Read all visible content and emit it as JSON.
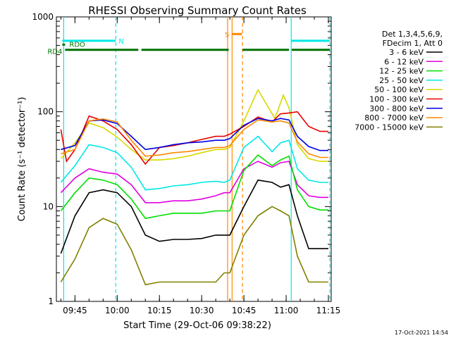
{
  "chart_data": {
    "type": "line",
    "title": "RHESSI Observing Summary Count Rates",
    "xlabel": "Start Time (29-Oct-06 09:38:22)",
    "ylabel": "Count Rate (s⁻¹ detector⁻¹)",
    "ylim": [
      1,
      1000
    ],
    "yscale": "log",
    "xlim_minutes": [
      38.4,
      136.0
    ],
    "x_ticks": [
      "09:45",
      "10:00",
      "10:15",
      "10:30",
      "10:45",
      "11:00",
      "11:15"
    ],
    "y_ticks": [
      "1",
      "10",
      "100",
      "1000"
    ],
    "legend_header": [
      "Det 1,3,4,5,6,9,",
      "FDecim 1, Att 0"
    ],
    "legend_placement": "right",
    "series": [
      {
        "name": "3 - 6 keV",
        "color": "#000000",
        "points": [
          [
            40,
            3.2
          ],
          [
            45,
            8
          ],
          [
            50,
            14
          ],
          [
            55,
            15
          ],
          [
            60,
            14
          ],
          [
            65,
            10
          ],
          [
            70,
            5
          ],
          [
            75,
            4.3
          ],
          [
            80,
            4.5
          ],
          [
            85,
            4.5
          ],
          [
            90,
            4.6
          ],
          [
            95,
            5
          ],
          [
            98,
            5
          ],
          [
            100,
            5
          ],
          [
            105,
            10
          ],
          [
            110,
            19
          ],
          [
            115,
            18
          ],
          [
            118,
            16
          ],
          [
            121,
            17
          ],
          [
            124,
            8
          ],
          [
            128,
            3.6
          ],
          [
            132,
            3.6
          ],
          [
            135,
            3.6
          ]
        ]
      },
      {
        "name": "6 - 12 keV",
        "color": "#e000e0",
        "points": [
          [
            40,
            14
          ],
          [
            45,
            20
          ],
          [
            50,
            25
          ],
          [
            55,
            23
          ],
          [
            60,
            22
          ],
          [
            65,
            17
          ],
          [
            70,
            11
          ],
          [
            75,
            11
          ],
          [
            80,
            11.5
          ],
          [
            85,
            11.5
          ],
          [
            90,
            12
          ],
          [
            95,
            13
          ],
          [
            98,
            14
          ],
          [
            100,
            14
          ],
          [
            105,
            25
          ],
          [
            110,
            30
          ],
          [
            115,
            26
          ],
          [
            118,
            29
          ],
          [
            121,
            30
          ],
          [
            124,
            17
          ],
          [
            128,
            13
          ],
          [
            132,
            12.5
          ],
          [
            135,
            12.5
          ]
        ]
      },
      {
        "name": "12 - 25 keV",
        "color": "#00e000",
        "points": [
          [
            40,
            9
          ],
          [
            45,
            14
          ],
          [
            50,
            20
          ],
          [
            55,
            19
          ],
          [
            60,
            17
          ],
          [
            65,
            12
          ],
          [
            70,
            7.5
          ],
          [
            75,
            8
          ],
          [
            80,
            8.5
          ],
          [
            85,
            8.5
          ],
          [
            90,
            8.5
          ],
          [
            95,
            9
          ],
          [
            98,
            9
          ],
          [
            100,
            9
          ],
          [
            105,
            24
          ],
          [
            110,
            35
          ],
          [
            115,
            27
          ],
          [
            118,
            31
          ],
          [
            121,
            34
          ],
          [
            124,
            15
          ],
          [
            128,
            10
          ],
          [
            132,
            9.2
          ],
          [
            135,
            9.2
          ]
        ]
      },
      {
        "name": "25 - 50 keV",
        "color": "#00e8e8",
        "points": [
          [
            40,
            18
          ],
          [
            45,
            27
          ],
          [
            50,
            45
          ],
          [
            55,
            42
          ],
          [
            60,
            37
          ],
          [
            65,
            26
          ],
          [
            70,
            15
          ],
          [
            75,
            15.5
          ],
          [
            80,
            16.5
          ],
          [
            85,
            17
          ],
          [
            90,
            18
          ],
          [
            95,
            18.5
          ],
          [
            98,
            18
          ],
          [
            100,
            19
          ],
          [
            105,
            42
          ],
          [
            110,
            55
          ],
          [
            115,
            38
          ],
          [
            118,
            47
          ],
          [
            121,
            50
          ],
          [
            124,
            25
          ],
          [
            128,
            19
          ],
          [
            132,
            18
          ],
          [
            135,
            18
          ]
        ]
      },
      {
        "name": "50 - 100 keV",
        "color": "#d8d800",
        "points": [
          [
            40,
            32
          ],
          [
            45,
            47
          ],
          [
            50,
            76
          ],
          [
            55,
            68
          ],
          [
            60,
            54
          ],
          [
            65,
            40
          ],
          [
            70,
            31
          ],
          [
            75,
            31
          ],
          [
            80,
            32
          ],
          [
            85,
            34
          ],
          [
            90,
            37
          ],
          [
            95,
            40
          ],
          [
            98,
            40
          ],
          [
            100,
            42
          ],
          [
            105,
            80
          ],
          [
            110,
            170
          ],
          [
            113,
            120
          ],
          [
            116,
            85
          ],
          [
            119,
            150
          ],
          [
            121,
            110
          ],
          [
            124,
            45
          ],
          [
            128,
            32
          ],
          [
            132,
            30
          ],
          [
            135,
            30
          ]
        ]
      },
      {
        "name": "100 - 300 keV",
        "color": "#e80000",
        "points": [
          [
            40,
            65
          ],
          [
            42,
            30
          ],
          [
            45,
            40
          ],
          [
            50,
            90
          ],
          [
            55,
            80
          ],
          [
            60,
            65
          ],
          [
            65,
            45
          ],
          [
            70,
            28
          ],
          [
            75,
            42
          ],
          [
            80,
            44
          ],
          [
            85,
            47
          ],
          [
            90,
            51
          ],
          [
            95,
            55
          ],
          [
            98,
            55
          ],
          [
            100,
            58
          ],
          [
            105,
            70
          ],
          [
            110,
            88
          ],
          [
            115,
            78
          ],
          [
            118,
            95
          ],
          [
            121,
            97
          ],
          [
            124,
            100
          ],
          [
            128,
            70
          ],
          [
            132,
            62
          ],
          [
            135,
            62
          ]
        ]
      },
      {
        "name": "300 - 800 keV",
        "color": "#0000e0",
        "points": [
          [
            40,
            40
          ],
          [
            45,
            44
          ],
          [
            50,
            80
          ],
          [
            55,
            82
          ],
          [
            60,
            75
          ],
          [
            65,
            55
          ],
          [
            70,
            40
          ],
          [
            75,
            42
          ],
          [
            80,
            45
          ],
          [
            85,
            47
          ],
          [
            90,
            48
          ],
          [
            95,
            50
          ],
          [
            98,
            50
          ],
          [
            100,
            52
          ],
          [
            105,
            72
          ],
          [
            110,
            85
          ],
          [
            115,
            80
          ],
          [
            118,
            85
          ],
          [
            121,
            82
          ],
          [
            124,
            55
          ],
          [
            128,
            43
          ],
          [
            132,
            39
          ],
          [
            135,
            39
          ]
        ]
      },
      {
        "name": "800 - 7000 keV",
        "color": "#ff8800",
        "points": [
          [
            40,
            36
          ],
          [
            45,
            40
          ],
          [
            50,
            80
          ],
          [
            55,
            84
          ],
          [
            60,
            78
          ],
          [
            65,
            50
          ],
          [
            70,
            34
          ],
          [
            75,
            35
          ],
          [
            80,
            37
          ],
          [
            85,
            38
          ],
          [
            90,
            40
          ],
          [
            95,
            42
          ],
          [
            98,
            42
          ],
          [
            100,
            44
          ],
          [
            105,
            65
          ],
          [
            110,
            82
          ],
          [
            115,
            78
          ],
          [
            118,
            80
          ],
          [
            121,
            76
          ],
          [
            124,
            48
          ],
          [
            128,
            36
          ],
          [
            132,
            33
          ],
          [
            135,
            33
          ]
        ]
      },
      {
        "name": "7000 - 15000 keV",
        "color": "#808000",
        "points": [
          [
            40,
            1.6
          ],
          [
            45,
            2.8
          ],
          [
            50,
            6
          ],
          [
            55,
            7.5
          ],
          [
            60,
            6.5
          ],
          [
            65,
            3.5
          ],
          [
            70,
            1.5
          ],
          [
            75,
            1.6
          ],
          [
            80,
            1.6
          ],
          [
            85,
            1.6
          ],
          [
            90,
            1.6
          ],
          [
            95,
            1.6
          ],
          [
            98,
            2
          ],
          [
            100,
            2
          ],
          [
            105,
            5
          ],
          [
            110,
            8
          ],
          [
            115,
            10
          ],
          [
            118,
            9
          ],
          [
            121,
            8
          ],
          [
            124,
            3
          ],
          [
            128,
            1.6
          ],
          [
            132,
            1.6
          ],
          [
            135,
            1.6
          ]
        ]
      }
    ],
    "bars": [
      {
        "label": "N",
        "color": "#00e8e8",
        "y": 560,
        "segments": [
          [
            40.5,
            59.5
          ],
          [
            121.8,
            135.5
          ]
        ]
      },
      {
        "label": "S",
        "color": "#ff8800",
        "y": 660,
        "segments": [
          [
            100.8,
            104.3
          ]
        ]
      },
      {
        "label": "RDO",
        "color": "#007000",
        "y": 510,
        "segments": [
          [
            40.5,
            41.5
          ]
        ]
      },
      {
        "label": "RD4",
        "color": "#007000",
        "y": 450,
        "segments": [
          [
            41.5,
            67.5
          ],
          [
            68.6,
            99.6
          ],
          [
            104.5,
            121.0
          ],
          [
            122.0,
            135.5
          ]
        ]
      }
    ],
    "vlines": [
      {
        "x": 41.0,
        "color": "#00e8e8",
        "style": "solid"
      },
      {
        "x": 59.5,
        "color": "#00e8e8",
        "style": "dashed"
      },
      {
        "x": 99.2,
        "color": "#ff8800",
        "style": "solid"
      },
      {
        "x": 100.8,
        "color": "#ff8800",
        "style": "solid"
      },
      {
        "x": 104.5,
        "color": "#ff8800",
        "style": "dashed"
      },
      {
        "x": 121.8,
        "color": "#00e8e8",
        "style": "solid"
      },
      {
        "x": 135.5,
        "color": "#00e8e8",
        "style": "dashed"
      }
    ],
    "timestamp": "17-Oct-2021 14:54"
  }
}
